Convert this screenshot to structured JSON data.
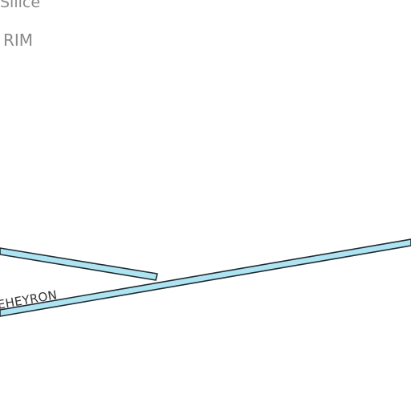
{
  "map": {
    "labels": {
      "place_top": "Silice",
      "place_second": "RIM",
      "road": "EHEYRON"
    },
    "colors": {
      "background": "#ffffff",
      "road_fill": "#aee4f2",
      "road_casing": "#1e2a30",
      "place_text": "#8a8a8a",
      "road_text": "#333333"
    }
  }
}
